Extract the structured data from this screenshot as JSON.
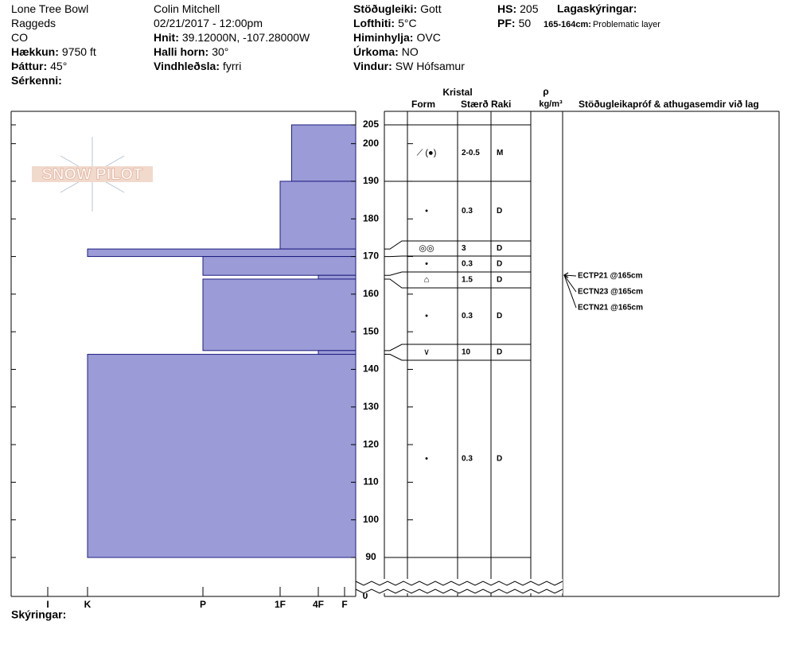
{
  "header": {
    "columns": [
      [
        {
          "value": "Lone Tree Bowl"
        },
        {
          "value": "Raggeds"
        },
        {
          "value": "CO"
        },
        {
          "label": "Hækkun:",
          "value": "9750 ft"
        },
        {
          "label": "Þáttur:",
          "value": "45°"
        },
        {
          "label": "Sérkenni:"
        }
      ],
      [
        {
          "value": "Colin Mitchell"
        },
        {
          "value": "02/21/2017 - 12:00pm"
        },
        {
          "label": "Hnit:",
          "value": "39.12000N, -107.28000W"
        },
        {
          "label": "Halli horn:",
          "value": "30°"
        },
        {
          "label": "Vindhleðsla:",
          "value": "fyrri"
        }
      ],
      [
        {
          "label": "Stöðugleiki:",
          "value": "Gott"
        },
        {
          "label": "Lofthiti:",
          "value": "5°C"
        },
        {
          "label": "Himinhylja:",
          "value": "OVC"
        },
        {
          "label": "Úrkoma:",
          "value": "NO"
        },
        {
          "label": "Vindur:",
          "value": "SW Hófsamur"
        }
      ],
      [
        {
          "label": "HS:",
          "value": "205"
        },
        {
          "label": "PF:",
          "value": "50"
        }
      ]
    ],
    "layer_notes_title": "Lagaskýringar:",
    "layer_notes": [
      {
        "label": "165-164cm:",
        "value": "Problematic layer"
      }
    ]
  },
  "logo": "SNOW PILOT",
  "chart_data": {
    "type": "bar",
    "orientation": "horizontal",
    "layer_top": [
      205,
      190,
      172,
      170,
      165,
      164,
      145,
      144
    ],
    "layer_bottom": [
      190,
      172,
      170,
      165,
      164,
      145,
      144,
      90
    ],
    "values": [
      2.7,
      3,
      5,
      4,
      2,
      4,
      2,
      5
    ],
    "color": "#9b9bd7",
    "edge_color": "#1c1c80",
    "ylim": [
      90,
      205
    ],
    "yticks": [
      90,
      100,
      110,
      120,
      130,
      140,
      150,
      160,
      170,
      180,
      190,
      200,
      205
    ],
    "ybreak_tick": 0,
    "xlim": [
      0,
      6
    ],
    "xticks": [
      {
        "value": 6,
        "label": "I"
      },
      {
        "value": 5,
        "label": "K"
      },
      {
        "value": 4,
        "label": "P"
      },
      {
        "value": 3,
        "label": "1F"
      },
      {
        "value": 2,
        "label": "4F"
      },
      {
        "value": 1,
        "label": "F"
      }
    ]
  },
  "stratigraphy": {
    "headers": {
      "crystal": "Kristal",
      "form": "Form",
      "size": "Stærð",
      "moisture": "Raki",
      "density_symbol": "ρ",
      "density_unit": "kg/m³",
      "tests": "Stöðugleikapróf & athugasemdir við lag"
    },
    "rows": [
      {
        "form": "⟋ (●)",
        "size": "2-0.5",
        "moisture": "M"
      },
      {
        "form": "•",
        "size": "0.3",
        "moisture": "D"
      },
      {
        "form": "◎◎",
        "size": "3",
        "moisture": "D"
      },
      {
        "form": "•",
        "size": "0.3",
        "moisture": "D"
      },
      {
        "form": "⌂",
        "size": "1.5",
        "moisture": "D"
      },
      {
        "form": "•",
        "size": "0.3",
        "moisture": "D"
      },
      {
        "form": "∨",
        "size": "10",
        "moisture": "D"
      },
      {
        "form": "•",
        "size": "0.3",
        "moisture": "D"
      }
    ]
  },
  "tests": [
    "ECTP21 @165cm",
    "ECTN23 @165cm",
    "ECTN21 @165cm"
  ],
  "footer": "Skýringar:"
}
